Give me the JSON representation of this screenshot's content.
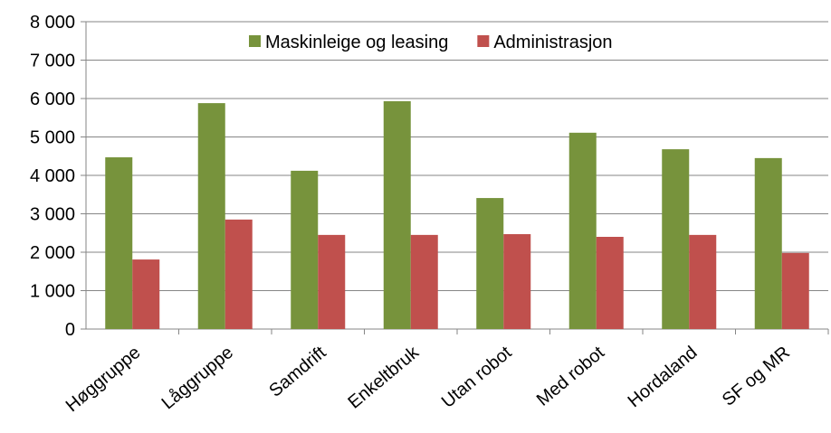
{
  "chart_data": {
    "type": "bar",
    "categories": [
      "Høggruppe",
      "Låggruppe",
      "Samdrift",
      "Enkeltbruk",
      "Utan robot",
      "Med robot",
      "Hordaland",
      "SF og MR"
    ],
    "series": [
      {
        "name": "Maskinleige og leasing",
        "color": "#77933c",
        "values": [
          4470,
          5880,
          4120,
          5930,
          3410,
          5110,
          4680,
          4450
        ]
      },
      {
        "name": "Administrasjon",
        "color": "#c0504d",
        "values": [
          1810,
          2850,
          2450,
          2450,
          2470,
          2400,
          2450,
          1980
        ]
      }
    ],
    "ylim": [
      0,
      8000
    ],
    "yticks": [
      0,
      {
        "value": 1000,
        "label": "1 000"
      },
      {
        "value": 2000,
        "label": "2 000"
      },
      {
        "value": 3000,
        "label": "3 000"
      },
      {
        "value": 4000,
        "label": "4 000"
      },
      {
        "value": 5000,
        "label": "5 000"
      },
      {
        "value": 6000,
        "label": "6 000"
      },
      {
        "value": 7000,
        "label": "7 000"
      },
      {
        "value": 8000,
        "label": "8 000"
      }
    ],
    "grid": true,
    "legend": "top"
  }
}
